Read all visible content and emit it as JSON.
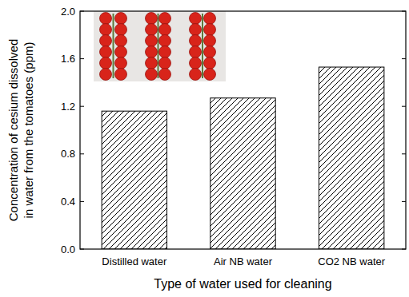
{
  "chart_data": {
    "type": "bar",
    "xlabel": "Type of water used for cleaning",
    "ylabel": "Concentration of cesium dissolved in water from the tomatoes (ppm)",
    "categories": [
      "Distilled water",
      "Air NB water",
      "CO2 NB water"
    ],
    "values": [
      1.16,
      1.27,
      1.53
    ],
    "color": "#000000",
    "ylim": [
      0,
      2
    ],
    "yticks": [
      {
        "value": 0,
        "label": "0.0"
      },
      0.4,
      0.8,
      1.2,
      1.6,
      {
        "value": 2,
        "label": "2.0"
      }
    ],
    "grid": false
  }
}
